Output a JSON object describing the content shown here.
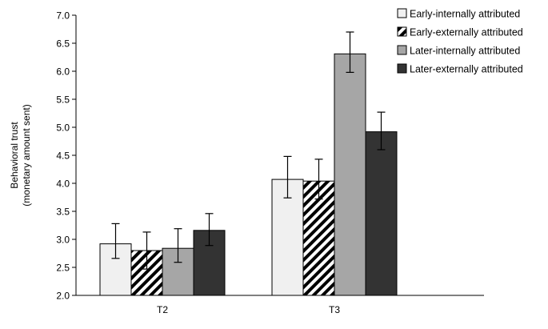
{
  "chart_data": {
    "type": "bar",
    "title": "",
    "xlabel": "",
    "ylabel_lines": [
      "Behavioral trust",
      "(monetary amount sent)"
    ],
    "categories": [
      "T2",
      "T3"
    ],
    "ylim": [
      2.0,
      7.0
    ],
    "yticks": [
      "2.0",
      "2.5",
      "3.0",
      "3.5",
      "4.0",
      "4.5",
      "5.0",
      "5.5",
      "6.0",
      "6.5",
      "7.0"
    ],
    "grid": false,
    "legend_position": "top-right",
    "series": [
      {
        "name": "Early-internally attributed",
        "color": "#f0f0f0",
        "pattern": "solid",
        "values": [
          2.92,
          4.07
        ],
        "error_low": [
          2.66,
          3.74
        ],
        "error_high": [
          3.28,
          4.48
        ]
      },
      {
        "name": "Early-externally attributed",
        "color": "#000000",
        "pattern": "hatch",
        "values": [
          2.8,
          4.04
        ],
        "error_low": [
          2.47,
          3.72
        ],
        "error_high": [
          3.13,
          4.43
        ]
      },
      {
        "name": "Later-internally attributed",
        "color": "#a6a6a6",
        "pattern": "solid",
        "values": [
          2.84,
          6.31
        ],
        "error_low": [
          2.59,
          5.98
        ],
        "error_high": [
          3.19,
          6.7
        ]
      },
      {
        "name": "Later-externally attributed",
        "color": "#333333",
        "pattern": "solid",
        "values": [
          3.16,
          4.92
        ],
        "error_low": [
          2.89,
          4.6
        ],
        "error_high": [
          3.46,
          5.27
        ]
      }
    ]
  }
}
